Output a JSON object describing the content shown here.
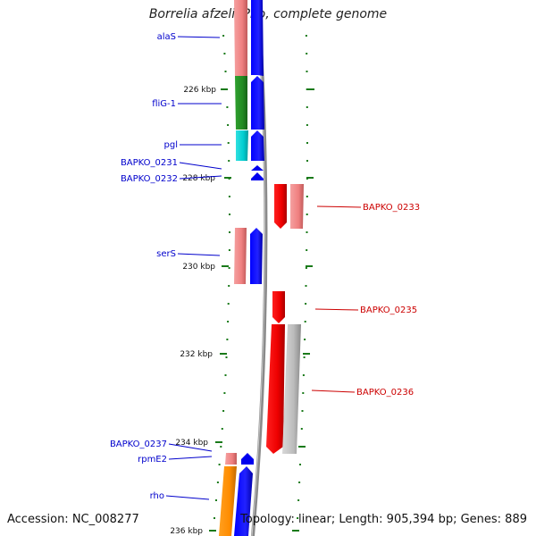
{
  "title": "Borrelia afzelii PKo, complete genome",
  "footer": {
    "accession": "Accession: NC_008277",
    "summary": "Topology: linear; Length: 905,394 bp; Genes: 889"
  },
  "ticks": [
    "226 kbp",
    "228 kbp",
    "230 kbp",
    "232 kbp",
    "234 kbp",
    "236 kbp"
  ],
  "colors": {
    "left_gene_label": "#0000cc",
    "right_gene_label": "#cc0000",
    "forward_cds": "#0000ee",
    "reverse_cds": "#ee0000",
    "tick_mark": "#1a7a1a",
    "backbone": "#808080"
  },
  "genes_left": [
    "alaS",
    "fliG-1",
    "pgl",
    "BAPKO_0231",
    "BAPKO_0232",
    "serS",
    "BAPKO_0237",
    "rpmE2",
    "rho"
  ],
  "genes_right": [
    "BAPKO_0233",
    "BAPKO_0235",
    "BAPKO_0236"
  ],
  "cog_colors": {
    "alaS": "#f08080",
    "fliG-1": "#228b22",
    "pgl": "#00ced1",
    "serS": "#f08080",
    "BAPKO_0237": "#f08080",
    "rho": "#ff8c00",
    "BAPKO_0233": "#f08080",
    "BAPKO_0236": "#b0b0b0"
  }
}
